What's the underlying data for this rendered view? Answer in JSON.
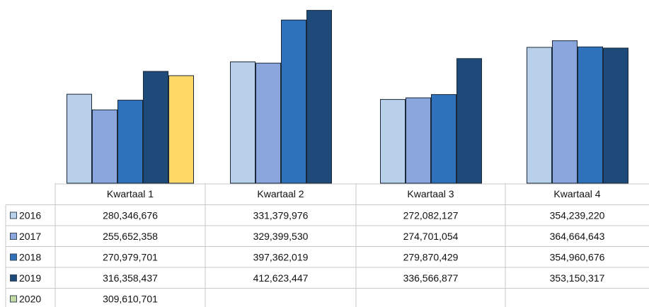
{
  "chart_data": {
    "type": "bar",
    "categories": [
      "Kwartaal 1",
      "Kwartaal 2",
      "Kwartaal 3",
      "Kwartaal 4"
    ],
    "series": [
      {
        "name": "2016",
        "color": "#b8d0ea",
        "values": [
          280346676,
          331379976,
          272082127,
          354239220
        ],
        "labels": [
          "280,346,676",
          "331,379,976",
          "272,082,127",
          "354,239,220"
        ]
      },
      {
        "name": "2017",
        "color": "#8aa6dc",
        "values": [
          255652358,
          329399530,
          274701054,
          364664643
        ],
        "labels": [
          "255,652,358",
          "329,399,530",
          "274,701,054",
          "364,664,643"
        ]
      },
      {
        "name": "2018",
        "color": "#2e72bb",
        "values": [
          270979701,
          397362019,
          279870429,
          354960676
        ],
        "labels": [
          "270,979,701",
          "397,362,019",
          "279,870,429",
          "354,960,676"
        ]
      },
      {
        "name": "2019",
        "color": "#1d4a78",
        "values": [
          316358437,
          412623447,
          336566877,
          353150317
        ],
        "labels": [
          "316,358,437",
          "412,623,447",
          "336,566,877",
          "353,150,317"
        ]
      },
      {
        "name": "2020",
        "color": "#ffd966",
        "legend_color": "#c4d9a2",
        "values": [
          309610701,
          null,
          null,
          null
        ],
        "labels": [
          "309,610,701",
          "",
          "",
          ""
        ]
      }
    ],
    "ylim": [
      140000000,
      420000000
    ],
    "grid": false,
    "legend": "data-table"
  }
}
